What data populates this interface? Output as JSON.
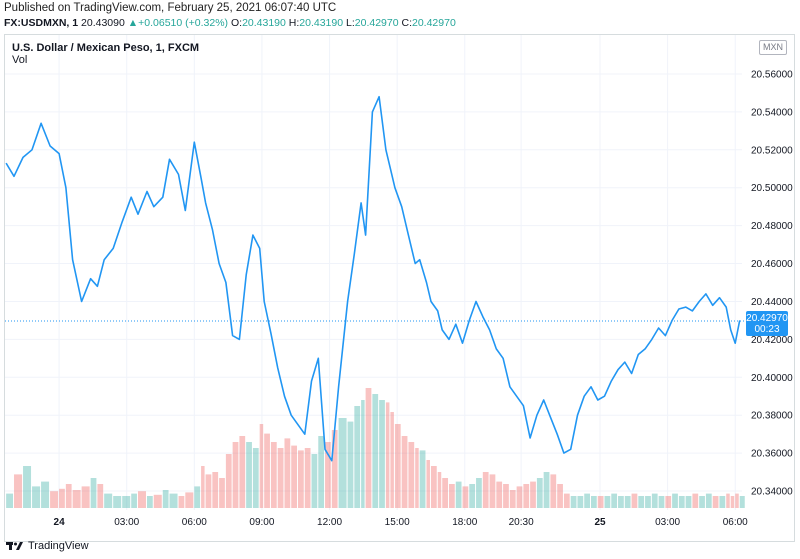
{
  "publish_note": "Published on TradingView.com, February 25, 2021 06:07:40 UTC",
  "ohlc_bar": {
    "symbol": "FX:USDMXN, 1",
    "last": "20.43090",
    "change_arrow": "▲",
    "change": "+0.06510 (+0.32%)",
    "o_label": "O:",
    "o_value": "20.43190",
    "h_label": "H:",
    "h_value": "20.43190",
    "l_label": "L:",
    "l_value": "20.42970",
    "c_label": "C:",
    "c_value": "20.42970"
  },
  "colors": {
    "line": "#2196f3",
    "up": "#26a69a",
    "vol_up": "#26a69a",
    "vol_down": "#ef5350",
    "grid": "#f0f3fa"
  },
  "currency_badge": "MXN",
  "price_tag": {
    "price": "20.42970",
    "countdown": "00:23"
  },
  "footer": {
    "brand": "TradingView",
    "logo_icon": "tradingview-logo-icon"
  },
  "chart_data": {
    "type": "line",
    "title": "U.S. Dollar / Mexican Peso, 1, FXCM",
    "volume_label": "Vol",
    "ylim": [
      20.33,
      20.57
    ],
    "y_ticks": [
      "20.56000",
      "20.54000",
      "20.52000",
      "20.50000",
      "20.48000",
      "20.46000",
      "20.44000",
      "20.42000",
      "20.40000",
      "20.38000",
      "20.36000",
      "20.34000"
    ],
    "x_tick_labels": [
      "24",
      "03:00",
      "06:00",
      "09:00",
      "12:00",
      "15:00",
      "18:00",
      "20:30",
      "25",
      "03:00",
      "06:00"
    ],
    "x_tick_hours": [
      0,
      3,
      6,
      9,
      12,
      15,
      18,
      20.5,
      24,
      27,
      30
    ],
    "xlim_hours": [
      -2.4,
      30.3
    ],
    "x_hours": [
      -2.35,
      -2.0,
      -1.6,
      -1.2,
      -0.8,
      -0.4,
      0.0,
      0.3,
      0.6,
      1.0,
      1.4,
      1.7,
      2.0,
      2.4,
      2.8,
      3.2,
      3.5,
      3.9,
      4.2,
      4.6,
      4.9,
      5.3,
      5.6,
      6.0,
      6.3,
      6.5,
      6.8,
      7.1,
      7.4,
      7.7,
      8.0,
      8.3,
      8.6,
      8.9,
      9.1,
      9.4,
      9.7,
      10.0,
      10.3,
      10.6,
      10.9,
      11.2,
      11.5,
      11.8,
      12.1,
      12.4,
      12.8,
      13.1,
      13.4,
      13.6,
      13.9,
      14.2,
      14.5,
      14.7,
      14.9,
      15.2,
      15.5,
      15.8,
      16.0,
      16.3,
      16.5,
      16.8,
      17.0,
      17.3,
      17.6,
      17.9,
      18.2,
      18.5,
      18.8,
      19.1,
      19.4,
      19.7,
      20.0,
      20.3,
      20.6,
      20.9,
      21.2,
      21.5,
      21.8,
      22.1,
      22.4,
      22.7,
      23.0,
      23.3,
      23.6,
      23.9,
      24.2,
      24.5,
      24.8,
      25.1,
      25.4,
      25.7,
      26.0,
      26.3,
      26.6,
      26.9,
      27.2,
      27.5,
      27.8,
      28.1,
      28.4,
      28.7,
      29.0,
      29.3,
      29.6,
      29.8,
      30.0,
      30.2
    ],
    "close": [
      20.513,
      20.506,
      20.516,
      20.52,
      20.534,
      20.522,
      20.518,
      20.5,
      20.462,
      20.44,
      20.452,
      20.448,
      20.462,
      20.468,
      20.482,
      20.495,
      20.486,
      20.498,
      20.49,
      20.495,
      20.515,
      20.507,
      20.488,
      20.524,
      20.505,
      20.492,
      20.478,
      20.46,
      20.45,
      20.422,
      20.42,
      20.454,
      20.475,
      20.468,
      20.44,
      20.423,
      20.405,
      20.39,
      20.38,
      20.375,
      20.37,
      20.398,
      20.41,
      20.362,
      20.356,
      20.395,
      20.44,
      20.465,
      20.492,
      20.475,
      20.54,
      20.548,
      20.52,
      20.51,
      20.5,
      20.49,
      20.475,
      20.46,
      20.462,
      20.45,
      20.44,
      20.435,
      20.425,
      20.42,
      20.428,
      20.418,
      20.43,
      20.44,
      20.432,
      20.425,
      20.415,
      20.41,
      20.395,
      20.39,
      20.385,
      20.368,
      20.38,
      20.388,
      20.379,
      20.37,
      20.36,
      20.362,
      20.38,
      20.39,
      20.395,
      20.388,
      20.39,
      20.398,
      20.404,
      20.408,
      20.402,
      20.412,
      20.415,
      20.42,
      20.426,
      20.422,
      20.43,
      20.436,
      20.437,
      20.435,
      20.44,
      20.444,
      20.438,
      20.442,
      20.437,
      20.425,
      20.418,
      20.43
    ],
    "volume": [
      0.12,
      0.28,
      0.35,
      0.18,
      0.22,
      0.14,
      0.16,
      0.2,
      0.15,
      0.18,
      0.25,
      0.2,
      0.12,
      0.1,
      0.1,
      0.12,
      0.14,
      0.1,
      0.11,
      0.15,
      0.12,
      0.1,
      0.13,
      0.18,
      0.35,
      0.28,
      0.3,
      0.25,
      0.45,
      0.55,
      0.6,
      0.55,
      0.5,
      0.7,
      0.62,
      0.55,
      0.5,
      0.58,
      0.52,
      0.48,
      0.5,
      0.45,
      0.6,
      0.55,
      0.65,
      0.75,
      0.72,
      0.85,
      0.9,
      1.0,
      0.95,
      0.9,
      0.88,
      0.8,
      0.7,
      0.6,
      0.55,
      0.5,
      0.48,
      0.4,
      0.35,
      0.3,
      0.25,
      0.2,
      0.22,
      0.18,
      0.2,
      0.25,
      0.3,
      0.28,
      0.22,
      0.2,
      0.15,
      0.18,
      0.2,
      0.22,
      0.25,
      0.3,
      0.28,
      0.2,
      0.12,
      0.1,
      0.1,
      0.12,
      0.1,
      0.1,
      0.1,
      0.12,
      0.1,
      0.1,
      0.12,
      0.1,
      0.1,
      0.12,
      0.1,
      0.1,
      0.12,
      0.1,
      0.1,
      0.12,
      0.1,
      0.12,
      0.1,
      0.1,
      0.12,
      0.1,
      0.12,
      0.1
    ]
  }
}
